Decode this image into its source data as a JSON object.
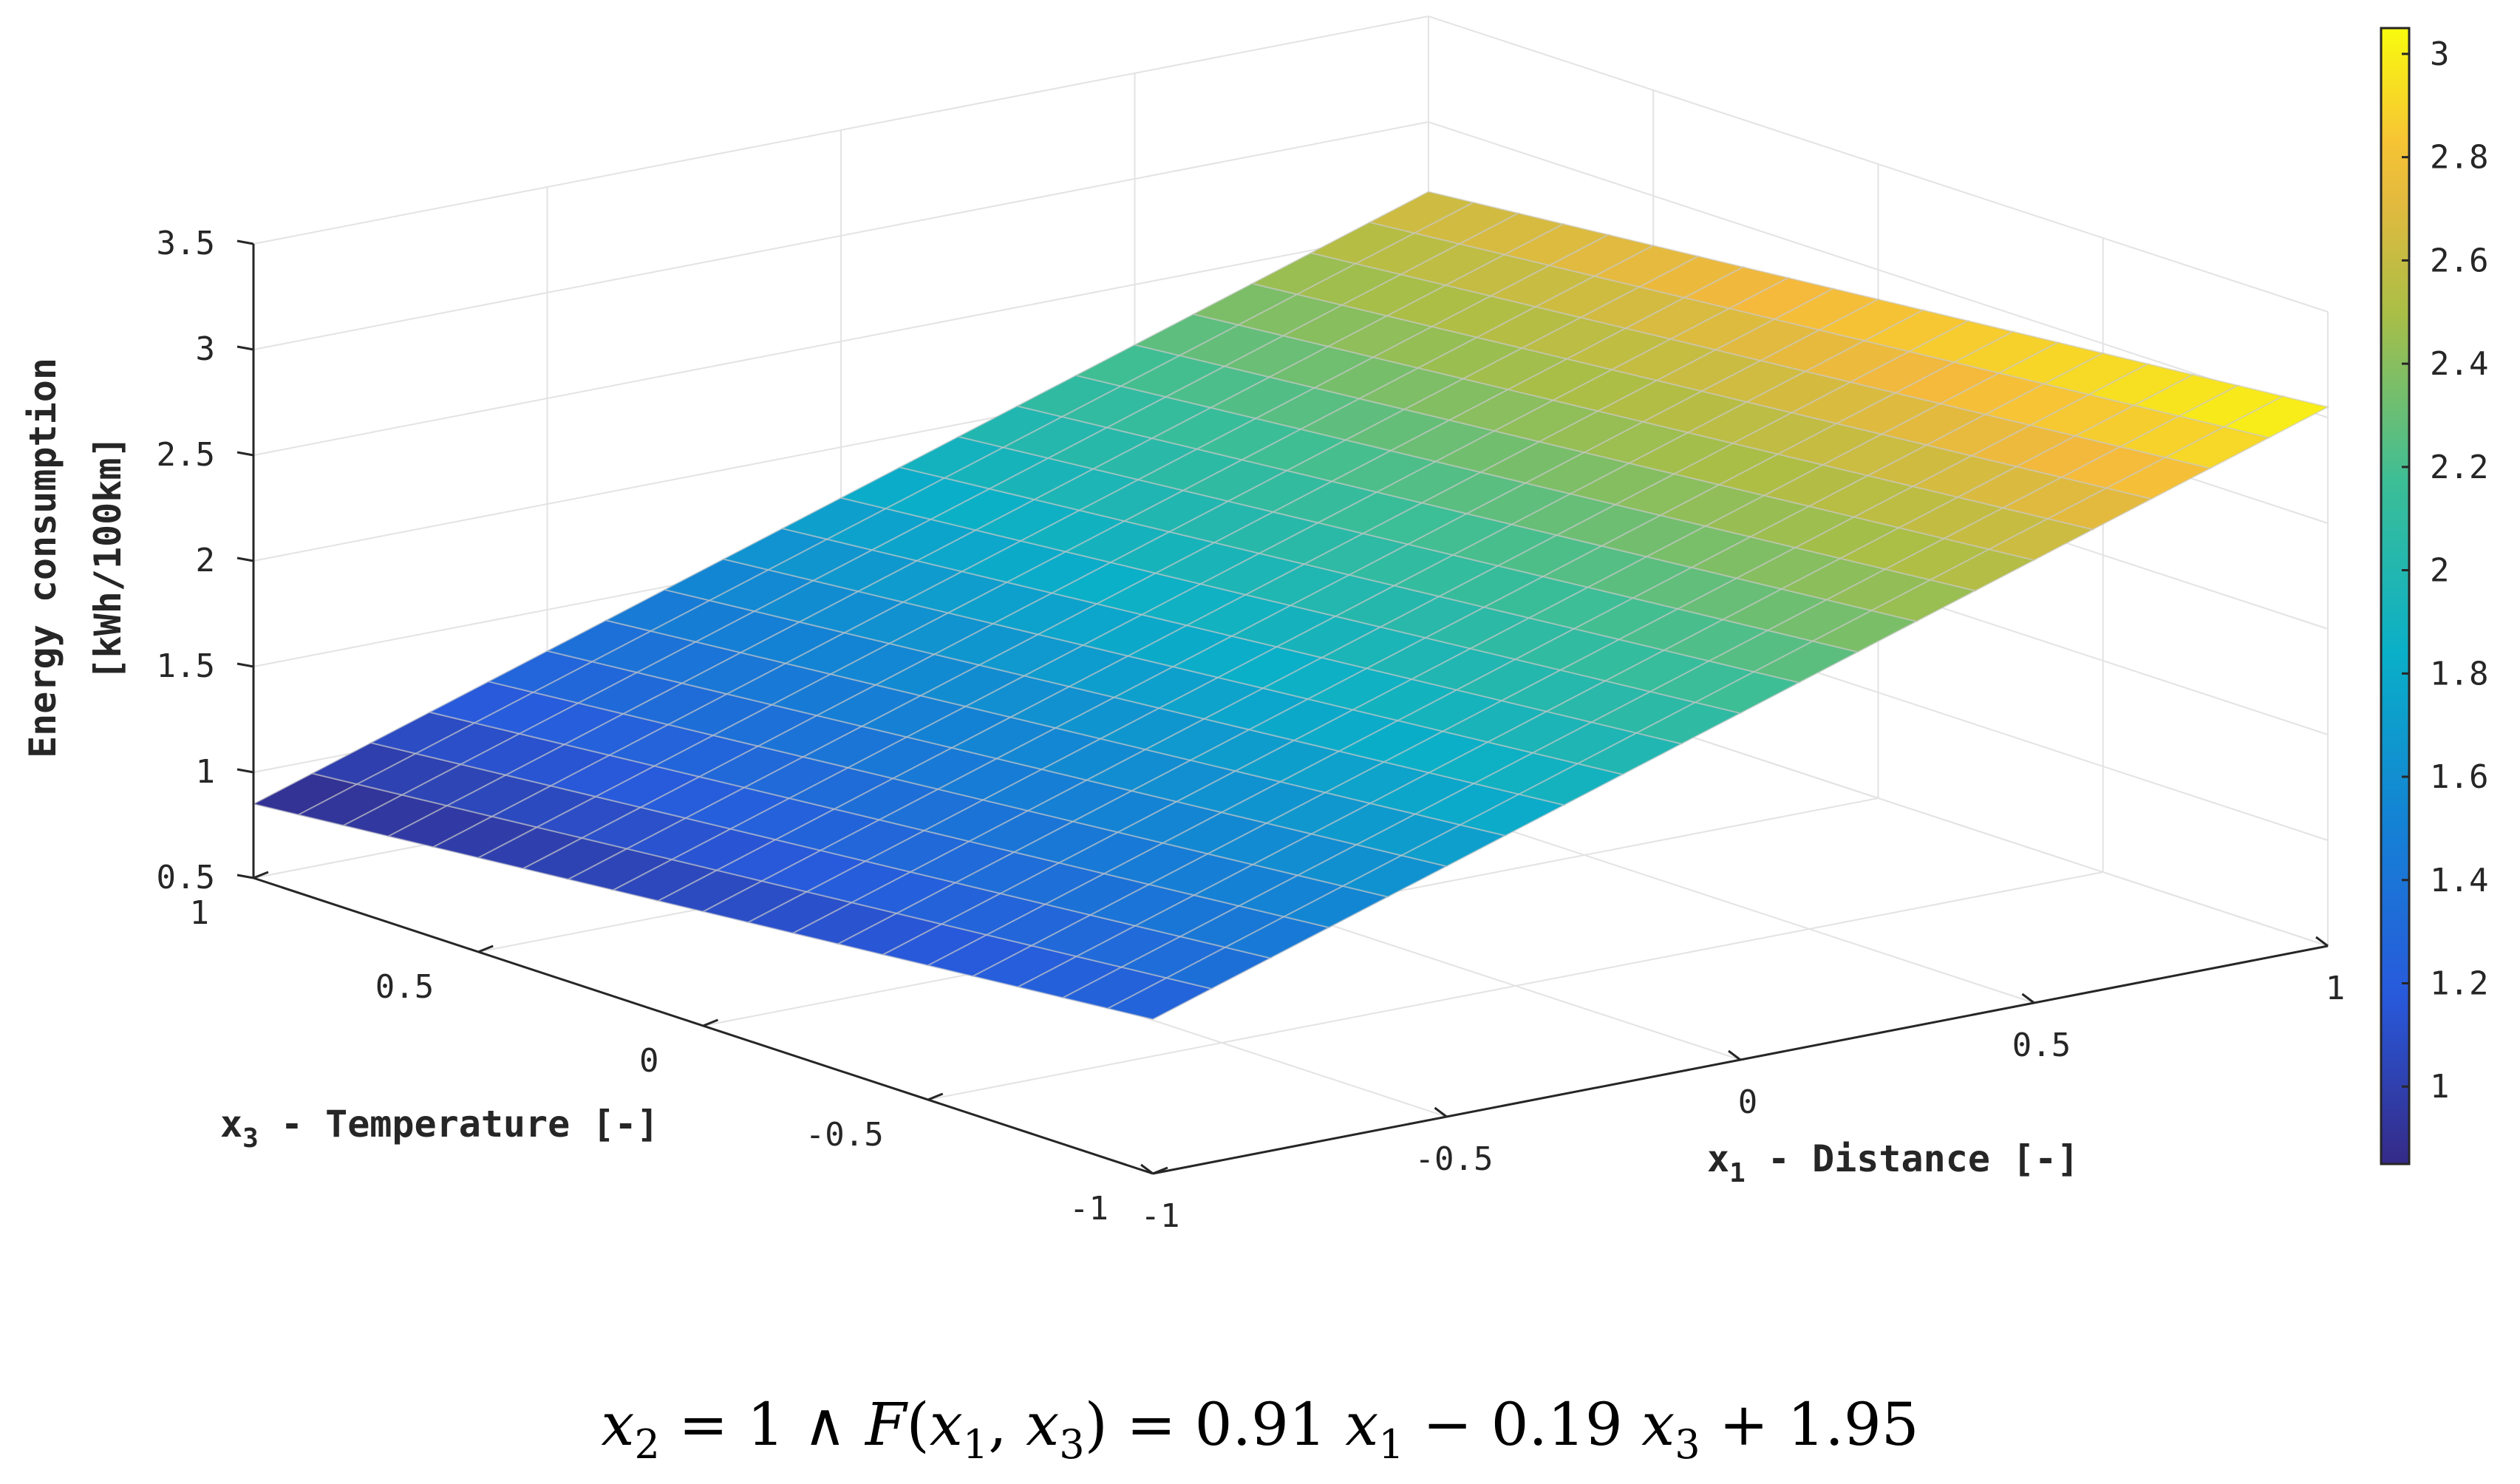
{
  "chart_data": {
    "type": "surface",
    "title": "",
    "function": {
      "a": 0.91,
      "b": -0.19,
      "c": 1.95
    },
    "x1": [
      -1,
      -0.9,
      -0.8,
      -0.7,
      -0.6,
      -0.5,
      -0.4,
      -0.3,
      -0.2,
      -0.1,
      0,
      0.1,
      0.2,
      0.3,
      0.4,
      0.5,
      0.6,
      0.7,
      0.8,
      0.9,
      1
    ],
    "x3": [
      -1,
      -0.9,
      -0.8,
      -0.7,
      -0.6,
      -0.5,
      -0.4,
      -0.3,
      -0.2,
      -0.1,
      0,
      0.1,
      0.2,
      0.3,
      0.4,
      0.5,
      0.6,
      0.7,
      0.8,
      0.9,
      1
    ],
    "corner_values": [
      {
        "x1": -1,
        "x3": -1,
        "z": 1.23
      },
      {
        "x1": 1,
        "x3": -1,
        "z": 3.05
      },
      {
        "x1": -1,
        "x3": 1,
        "z": 0.85
      },
      {
        "x1": 1,
        "x3": 1,
        "z": 2.67
      }
    ],
    "xlabel": {
      "var": "x",
      "sub": "1",
      "text": " - Distance [-]"
    },
    "ylabel": {
      "var": "x",
      "sub": "3",
      "text": " - Temperature [-]"
    },
    "zlabel": [
      "Energy consumption",
      "[kWh/100km]"
    ],
    "xlim": [
      -1,
      1
    ],
    "ylim": [
      -1,
      1
    ],
    "zlim": [
      0.5,
      3.5
    ],
    "xticks": [
      -1,
      -0.5,
      0,
      0.5,
      1
    ],
    "xtick_labels": [
      "-1",
      "-0.5",
      "0",
      "0.5",
      "1"
    ],
    "yticks": [
      -1,
      -0.5,
      0,
      0.5,
      1
    ],
    "ytick_labels": [
      "-1",
      "-0.5",
      "0",
      "0.5",
      "1"
    ],
    "zticks": [
      0.5,
      1,
      1.5,
      2,
      2.5,
      3,
      3.5
    ],
    "ztick_labels": [
      "0.5",
      "1",
      "1.5",
      "2",
      "2.5",
      "3",
      "3.5"
    ],
    "colorbar": {
      "range": [
        0.85,
        3.05
      ],
      "ticks": [
        1,
        1.2,
        1.4,
        1.6,
        1.8,
        2,
        2.2,
        2.4,
        2.6,
        2.8,
        3
      ],
      "tick_labels": [
        "1",
        "1.2",
        "1.4",
        "1.6",
        "1.8",
        "2",
        "2.2",
        "2.4",
        "2.6",
        "2.8",
        "3"
      ]
    },
    "colormap": "parula",
    "grid": true,
    "legend": "colorbar-right"
  },
  "caption": {
    "x": "x",
    "sub2": "2",
    "eq1": " = 1 ∧ ",
    "F": "F",
    "open": "(",
    "sub1": "1",
    "comma": ", ",
    "sub3": "3",
    "close": ") =  0.91 ",
    "minus": " − 0.19 ",
    "plus": " + 1.95"
  }
}
